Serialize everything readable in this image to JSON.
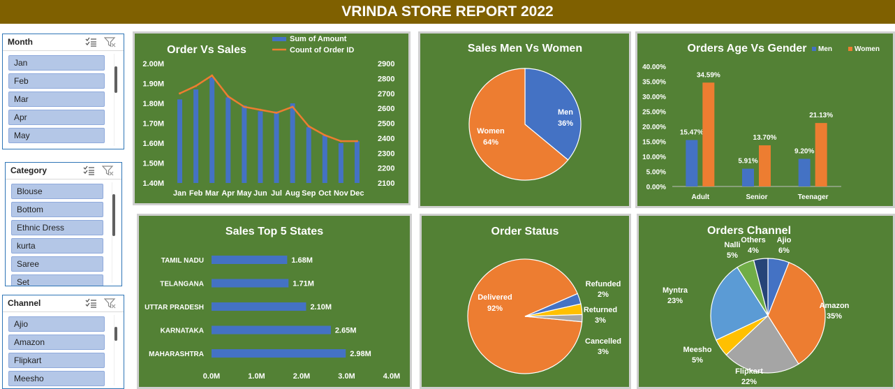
{
  "report_title": "VRINDA STORE REPORT 2022",
  "colors": {
    "title_bg": "#7f6000",
    "panel_bg": "#538135",
    "blue": "#4472c4",
    "orange": "#ed7d31",
    "grey": "#a5a5a5",
    "gold": "#ffc000",
    "lightblue": "#5b9bd5",
    "green": "#70ad47",
    "navy": "#264478"
  },
  "slicers": {
    "month": {
      "title": "Month",
      "items": [
        "Jan",
        "Feb",
        "Mar",
        "Apr",
        "May"
      ]
    },
    "category": {
      "title": "Category",
      "items": [
        "Blouse",
        "Bottom",
        "Ethnic Dress",
        "kurta",
        "Saree",
        "Set"
      ]
    },
    "channel": {
      "title": "Channel",
      "items": [
        "Ajio",
        "Amazon",
        "Flipkart",
        "Meesho"
      ]
    },
    "icons": {
      "multiselect": "multi-select-icon",
      "clear": "clear-filter-icon"
    }
  },
  "chart_data": [
    {
      "id": "order-vs-sales",
      "type": "bar",
      "title": "Order Vs Sales",
      "categories": [
        "Jan",
        "Feb",
        "Mar",
        "Apr",
        "May",
        "Jun",
        "Jul",
        "Aug",
        "Sep",
        "Oct",
        "Nov",
        "Dec"
      ],
      "series": [
        {
          "name": "Sum of Amount",
          "type": "bar",
          "axis": "left",
          "values": [
            1.82,
            1.87,
            1.93,
            1.83,
            1.79,
            1.76,
            1.76,
            1.8,
            1.68,
            1.64,
            1.6,
            1.61
          ]
        },
        {
          "name": "Count of Order ID",
          "type": "line",
          "axis": "right",
          "values": [
            2700,
            2750,
            2820,
            2680,
            2610,
            2590,
            2570,
            2610,
            2480,
            2420,
            2380,
            2380
          ]
        }
      ],
      "left_ticks": [
        "1.40M",
        "1.50M",
        "1.60M",
        "1.70M",
        "1.80M",
        "1.90M",
        "2.00M"
      ],
      "right_ticks": [
        "2100",
        "2200",
        "2300",
        "2400",
        "2500",
        "2600",
        "2700",
        "2800",
        "2900"
      ],
      "ylim": [
        1.4,
        2.0
      ],
      "ylim_right": [
        2100,
        2900
      ]
    },
    {
      "id": "sales-men-women",
      "type": "pie",
      "title": "Sales Men Vs Women",
      "slices": [
        {
          "label": "Men",
          "value": 36,
          "display": "36%"
        },
        {
          "label": "Women",
          "value": 64,
          "display": "64%"
        }
      ]
    },
    {
      "id": "orders-age-gender",
      "type": "bar",
      "title": "Orders Age Vs Gender",
      "categories": [
        "Adult",
        "Senior",
        "Teenager"
      ],
      "series": [
        {
          "name": "Men",
          "values": [
            15.47,
            5.91,
            9.2
          ],
          "labels": [
            "15.47%",
            "5.91%",
            "9.20%"
          ]
        },
        {
          "name": "Women",
          "values": [
            34.59,
            13.7,
            21.13
          ],
          "labels": [
            "34.59%",
            "13.70%",
            "21.13%"
          ]
        }
      ],
      "y_ticks": [
        "0.00%",
        "5.00%",
        "10.00%",
        "15.00%",
        "20.00%",
        "25.00%",
        "30.00%",
        "35.00%",
        "40.00%"
      ],
      "ylim": [
        0,
        40
      ]
    },
    {
      "id": "sales-top-states",
      "type": "bar",
      "title": "Sales Top 5 States",
      "categories": [
        "TAMIL NADU",
        "TELANGANA",
        "UTTAR PRADESH",
        "KARNATAKA",
        "MAHARASHTRA"
      ],
      "values": [
        1.68,
        1.71,
        2.1,
        2.65,
        2.98
      ],
      "value_labels": [
        "1.68M",
        "1.71M",
        "2.10M",
        "2.65M",
        "2.98M"
      ],
      "x_ticks": [
        "0.0M",
        "1.0M",
        "2.0M",
        "3.0M",
        "4.0M"
      ],
      "xlim": [
        0,
        4
      ]
    },
    {
      "id": "order-status",
      "type": "pie",
      "title": "Order Status",
      "slices": [
        {
          "label": "Delivered",
          "value": 92,
          "display": "92%"
        },
        {
          "label": "Cancelled",
          "value": 3,
          "display": "3%"
        },
        {
          "label": "Returned",
          "value": 3,
          "display": "3%"
        },
        {
          "label": "Refunded",
          "value": 2,
          "display": "2%"
        }
      ]
    },
    {
      "id": "orders-channel",
      "type": "pie",
      "title": "Orders Channel",
      "slices": [
        {
          "label": "Ajio",
          "value": 6,
          "display": "6%"
        },
        {
          "label": "Amazon",
          "value": 35,
          "display": "35%"
        },
        {
          "label": "Flipkart",
          "value": 22,
          "display": "22%"
        },
        {
          "label": "Meesho",
          "value": 5,
          "display": "5%"
        },
        {
          "label": "Myntra",
          "value": 23,
          "display": "23%"
        },
        {
          "label": "Nalli",
          "value": 5,
          "display": "5%"
        },
        {
          "label": "Others",
          "value": 4,
          "display": "4%"
        }
      ]
    }
  ]
}
